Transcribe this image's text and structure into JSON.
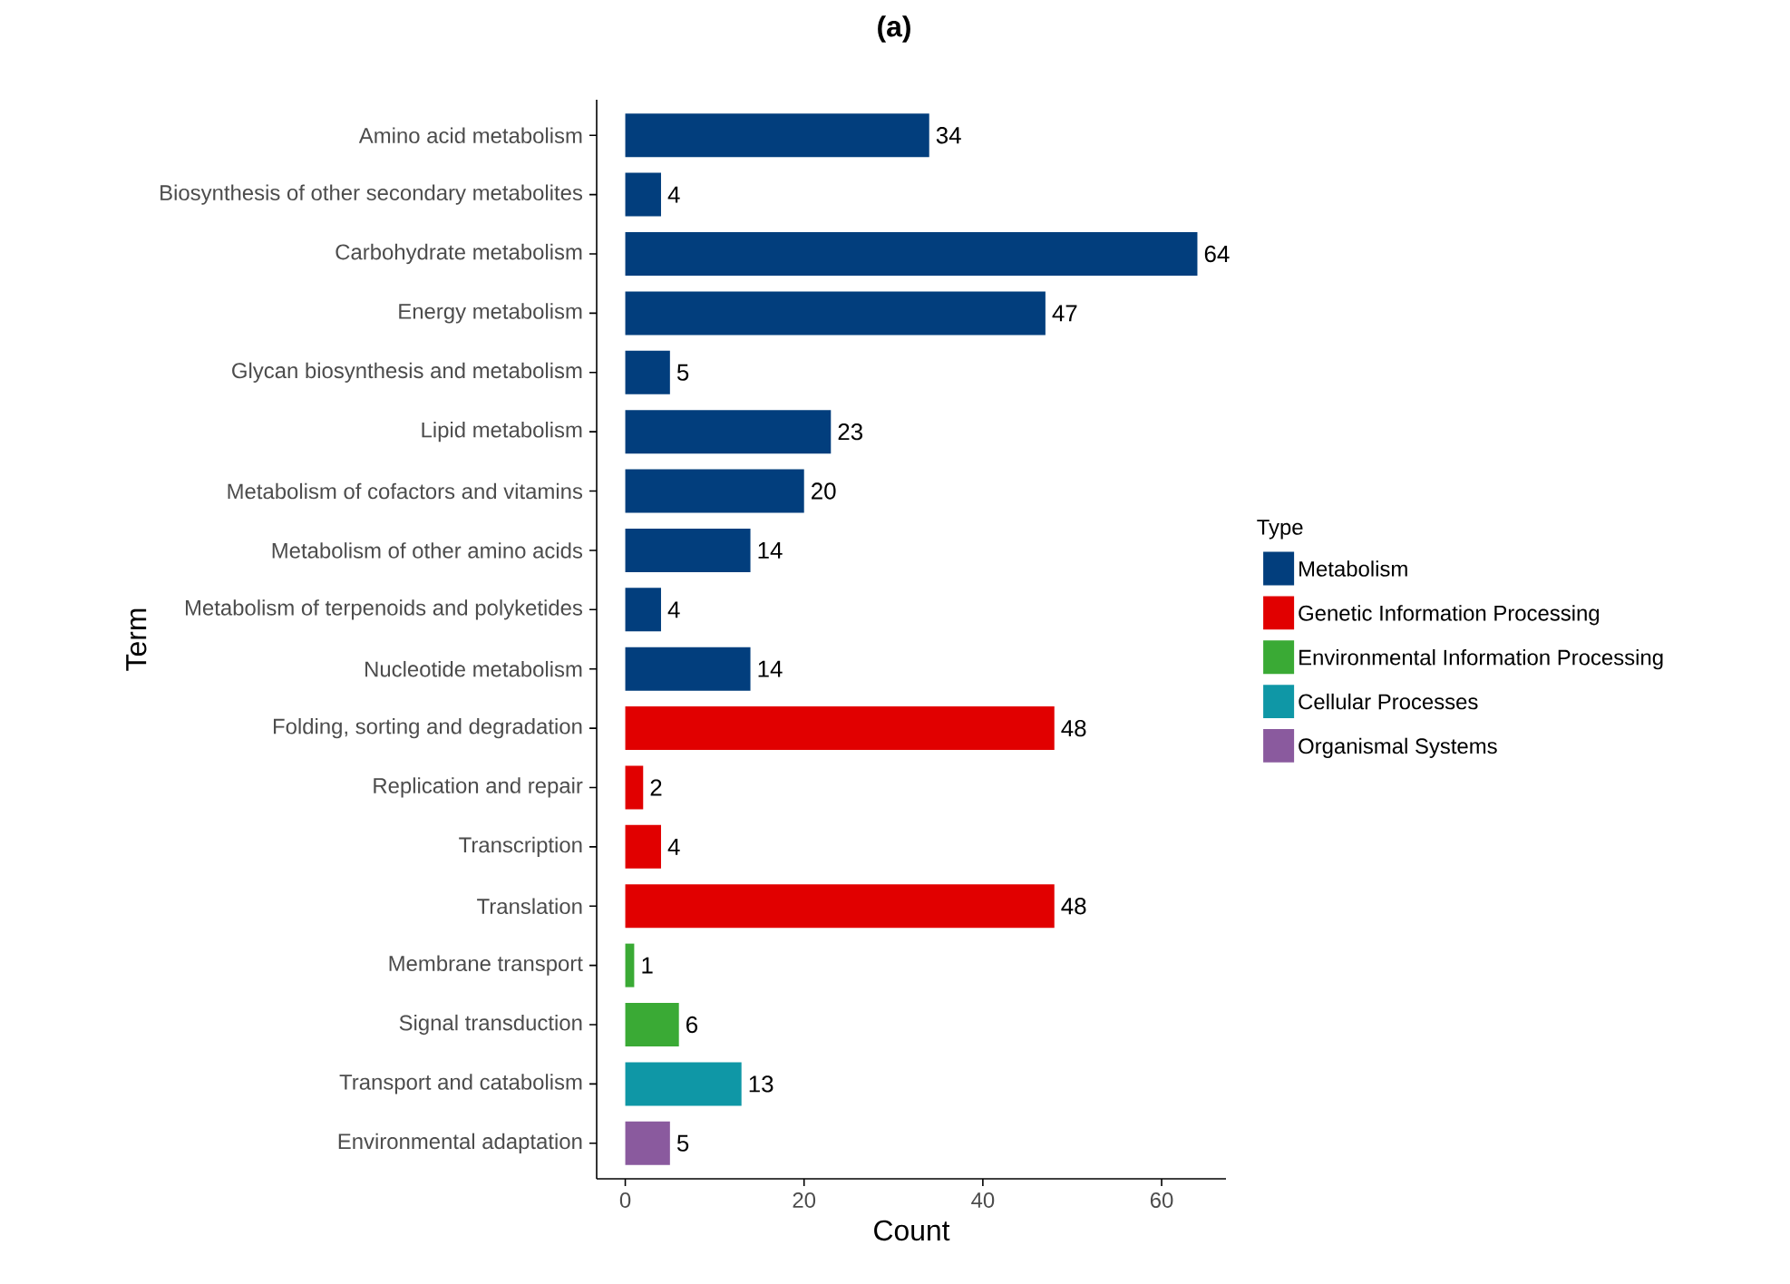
{
  "chart_data": {
    "type": "bar",
    "orientation": "horizontal",
    "title": "**(a)**",
    "xlabel": "Count",
    "ylabel": "Term",
    "legend_title": "Type",
    "legend": "right",
    "data_labels": true,
    "grid": false,
    "categories": [
      "Amino acid metabolism",
      "Biosynthesis of other secondary metabolites",
      "Carbohydrate metabolism",
      "Energy metabolism",
      "Glycan biosynthesis and metabolism",
      "Lipid metabolism",
      "Metabolism of cofactors and vitamins",
      "Metabolism of other amino acids",
      "Metabolism of terpenoids and polyketides",
      "Nucleotide metabolism",
      "Folding, sorting and degradation",
      "Replication and repair",
      "Transcription",
      "Translation",
      "Membrane transport",
      "Signal transduction",
      "Transport and catabolism",
      "Environmental adaptation"
    ],
    "xlim": [
      -3.2,
      67.2
    ],
    "xticks": [
      0,
      20,
      40,
      60
    ],
    "series": [
      {
        "name": "Metabolism",
        "color": "#023e7d",
        "values": [
          34,
          4,
          64,
          47,
          5,
          23,
          20,
          14,
          4,
          14,
          null,
          null,
          null,
          null,
          null,
          null,
          null,
          null
        ]
      },
      {
        "name": "Genetic Information Processing",
        "color": "#e10000",
        "values": [
          null,
          null,
          null,
          null,
          null,
          null,
          null,
          null,
          null,
          null,
          48,
          2,
          4,
          48,
          null,
          null,
          null,
          null
        ]
      },
      {
        "name": "Environmental Information Processing",
        "color": "#3aaa35",
        "values": [
          null,
          null,
          null,
          null,
          null,
          null,
          null,
          null,
          null,
          null,
          null,
          null,
          null,
          null,
          1,
          6,
          null,
          null
        ]
      },
      {
        "name": "Cellular Processes",
        "color": "#0f97a6",
        "values": [
          null,
          null,
          null,
          null,
          null,
          null,
          null,
          null,
          null,
          null,
          null,
          null,
          null,
          null,
          null,
          null,
          13,
          null
        ]
      },
      {
        "name": "Organismal Systems",
        "color": "#8a5a9e",
        "values": [
          null,
          null,
          null,
          null,
          null,
          null,
          null,
          null,
          null,
          null,
          null,
          null,
          null,
          null,
          null,
          null,
          null,
          5
        ]
      }
    ]
  }
}
